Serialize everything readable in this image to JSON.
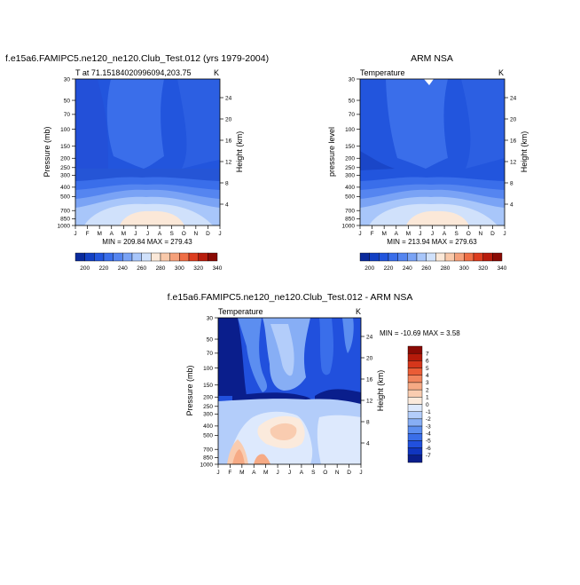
{
  "months": [
    "J",
    "F",
    "M",
    "A",
    "M",
    "J",
    "J",
    "A",
    "S",
    "O",
    "N",
    "D",
    "J"
  ],
  "pressure_ticks": [
    "30",
    "50",
    "70",
    "100",
    "150",
    "200",
    "250",
    "300",
    "400",
    "500",
    "700",
    "850",
    "1000"
  ],
  "pressure_values": [
    30,
    50,
    70,
    100,
    150,
    200,
    250,
    300,
    400,
    500,
    700,
    850,
    1000
  ],
  "colors": {
    "abs": [
      "#0a2a9c",
      "#1340c4",
      "#2255dd",
      "#3a6eea",
      "#5585f0",
      "#7aa3f5",
      "#a8c6fa",
      "#d0e1fb",
      "#fbe8d8",
      "#f9c9aa",
      "#f5a07a",
      "#ef6e45",
      "#dd3d1f",
      "#b81c0c",
      "#8a0a04"
    ],
    "diff": [
      "#0a1e8c",
      "#1035c0",
      "#2150dd",
      "#3a6ee8",
      "#5c8ef0",
      "#87aef5",
      "#b3cdfa",
      "#dde9fd",
      "#fbeadc",
      "#f9ccb0",
      "#f6aa85",
      "#f1845d",
      "#ea5c36",
      "#d6361b",
      "#b51a0a",
      "#8a0a04"
    ]
  },
  "chart_data": [
    {
      "type": "heatmap",
      "title": "f.e15a6.FAMIPC5.ne120_ne120.Club_Test.012 (yrs 1979-2004)",
      "left_label": "T at 71.15184020996094,203.75",
      "right_label": "K",
      "ylabel": "Pressure (mb)",
      "y2label": "Height (km)",
      "height_ticks": [
        "4",
        "8",
        "12",
        "16",
        "20",
        "24"
      ],
      "height_values": [
        4,
        8,
        12,
        16,
        20,
        24
      ],
      "stats": "MIN = 209.84 MAX = 279.43",
      "x": [
        "J",
        "F",
        "M",
        "A",
        "M",
        "J",
        "J",
        "A",
        "S",
        "O",
        "N",
        "D",
        "J"
      ],
      "y": [
        30,
        50,
        70,
        100,
        150,
        200,
        250,
        300,
        400,
        500,
        700,
        850,
        1000
      ],
      "colorbar": {
        "labels": [
          "200",
          "220",
          "240",
          "260",
          "280",
          "300",
          "320",
          "340"
        ],
        "levels": [
          200,
          210,
          220,
          230,
          240,
          250,
          260,
          270,
          280,
          290,
          300,
          310,
          320,
          330,
          340
        ]
      }
    },
    {
      "type": "heatmap",
      "title": "ARM NSA",
      "left_label": "Temperature",
      "right_label": "K",
      "ylabel": "pressure level",
      "y2label": "Height (km)",
      "height_ticks": [
        "4",
        "8",
        "12",
        "16",
        "20",
        "24"
      ],
      "height_values": [
        4,
        8,
        12,
        16,
        20,
        24
      ],
      "stats": "MIN = 213.94 MAX = 279.63",
      "x": [
        "J",
        "F",
        "M",
        "A",
        "M",
        "J",
        "J",
        "A",
        "S",
        "O",
        "N",
        "D",
        "J"
      ],
      "y": [
        30,
        50,
        70,
        100,
        150,
        200,
        250,
        300,
        400,
        500,
        700,
        850,
        1000
      ],
      "colorbar": {
        "labels": [
          "200",
          "220",
          "240",
          "260",
          "280",
          "300",
          "320",
          "340"
        ],
        "levels": [
          200,
          210,
          220,
          230,
          240,
          250,
          260,
          270,
          280,
          290,
          300,
          310,
          320,
          330,
          340
        ]
      }
    },
    {
      "type": "heatmap",
      "title": "f.e15a6.FAMIPC5.ne120_ne120.Club_Test.012 - ARM NSA",
      "left_label": "Temperature",
      "right_label": "K",
      "ylabel": "Pressure (mb)",
      "y2label": "Height (km)",
      "height_ticks": [
        "4",
        "8",
        "12",
        "16",
        "20",
        "24"
      ],
      "height_values": [
        4,
        8,
        12,
        16,
        20,
        24
      ],
      "stats": "MIN = -10.69 MAX =   3.58",
      "x": [
        "J",
        "F",
        "M",
        "A",
        "M",
        "J",
        "J",
        "A",
        "S",
        "O",
        "N",
        "D",
        "J"
      ],
      "y": [
        30,
        50,
        70,
        100,
        150,
        200,
        250,
        300,
        400,
        500,
        700,
        850,
        1000
      ],
      "colorbar": {
        "labels": [
          "7",
          "6",
          "5",
          "4",
          "3",
          "2",
          "1",
          "0",
          "-1",
          "-2",
          "-3",
          "-4",
          "-5",
          "-6",
          "-7"
        ],
        "levels": [
          -7,
          -6,
          -5,
          -4,
          -3,
          -2,
          -1,
          0,
          1,
          2,
          3,
          4,
          5,
          6,
          7
        ]
      }
    }
  ]
}
